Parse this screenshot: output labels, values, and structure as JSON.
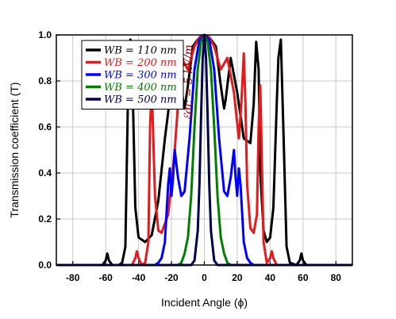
{
  "chart_data": {
    "type": "line",
    "title": "",
    "xlabel": "Incident Angle (ϕ)",
    "ylabel": "Transmission coefficient (T)",
    "xlim": [
      -90,
      90
    ],
    "ylim": [
      0,
      1.0
    ],
    "xticks": [
      "-80",
      "-60",
      "-40",
      "-20",
      "0",
      "20",
      "40",
      "60",
      "80"
    ],
    "yticks": [
      "0.0",
      "0.2",
      "0.4",
      "0.6",
      "0.8",
      "1.0"
    ],
    "grid": true,
    "legend_position": "top-left",
    "annotation": "ℰdc = 5 kV/m",
    "series": [
      {
        "name": "WB = 110 nm",
        "color": "#000000",
        "x": [
          -90,
          -62,
          -60,
          -59,
          -58,
          -56,
          -52,
          -50,
          -48,
          -46.5,
          -45,
          -44,
          -42,
          -40,
          -36,
          -32,
          -28,
          -24,
          -20,
          -16,
          -13,
          -12,
          -10,
          -7,
          -4,
          0,
          4,
          7,
          10,
          12,
          13,
          16,
          20,
          24,
          28,
          30,
          31.5,
          33,
          34,
          36,
          38,
          40,
          42,
          44,
          45,
          46.5,
          48,
          50,
          52,
          56,
          58,
          59,
          60,
          62,
          90
        ],
        "y": [
          0.0,
          0.0,
          0.02,
          0.05,
          0.02,
          0.0,
          0.0,
          0.01,
          0.08,
          0.7,
          0.98,
          0.9,
          0.25,
          0.12,
          0.1,
          0.13,
          0.28,
          0.55,
          0.78,
          0.9,
          0.72,
          0.68,
          0.78,
          0.95,
          0.98,
          1.0,
          0.98,
          0.95,
          0.78,
          0.68,
          0.72,
          0.9,
          0.75,
          0.55,
          0.53,
          0.7,
          0.97,
          0.85,
          0.4,
          0.15,
          0.1,
          0.12,
          0.25,
          0.7,
          0.9,
          0.98,
          0.6,
          0.08,
          0.01,
          0.0,
          0.02,
          0.05,
          0.02,
          0.0,
          0.0
        ]
      },
      {
        "name": "WB = 200 nm",
        "color": "#e41a1c",
        "x": [
          -90,
          -44,
          -42,
          -41,
          -40,
          -38,
          -36,
          -34,
          -33,
          -32,
          -30,
          -28,
          -26,
          -22,
          -18,
          -14,
          -10,
          -6,
          -3,
          0,
          3,
          6,
          10,
          14,
          18,
          21,
          22.5,
          24,
          25,
          26,
          28,
          30,
          32,
          33,
          34,
          36,
          38,
          40,
          41,
          42,
          44,
          90
        ],
        "y": [
          0.0,
          0.0,
          0.03,
          0.06,
          0.03,
          0.0,
          0.01,
          0.1,
          0.6,
          0.78,
          0.3,
          0.15,
          0.14,
          0.22,
          0.5,
          0.9,
          0.85,
          0.95,
          0.99,
          1.0,
          0.99,
          0.95,
          0.85,
          0.9,
          0.75,
          0.55,
          0.7,
          0.92,
          0.7,
          0.35,
          0.16,
          0.14,
          0.22,
          0.6,
          0.78,
          0.1,
          0.01,
          0.03,
          0.06,
          0.03,
          0.0,
          0.0
        ]
      },
      {
        "name": "WB = 300 nm",
        "color": "#0000ff",
        "x": [
          -90,
          -30,
          -28,
          -26,
          -24,
          -22,
          -21,
          -20,
          -19,
          -18,
          -16,
          -14,
          -12,
          -9,
          -6,
          -3,
          0,
          3,
          6,
          9,
          12,
          14,
          16,
          18,
          19,
          20,
          21,
          22,
          24,
          26,
          28,
          30,
          90
        ],
        "y": [
          0.0,
          0.0,
          0.01,
          0.03,
          0.1,
          0.35,
          0.42,
          0.3,
          0.38,
          0.5,
          0.38,
          0.3,
          0.32,
          0.55,
          0.85,
          0.98,
          1.0,
          0.98,
          0.85,
          0.55,
          0.32,
          0.3,
          0.38,
          0.5,
          0.38,
          0.3,
          0.42,
          0.35,
          0.1,
          0.03,
          0.01,
          0.0,
          0.0
        ]
      },
      {
        "name": "WB = 400 nm",
        "color": "#007f00",
        "x": [
          -90,
          -16,
          -14,
          -12,
          -10,
          -8,
          -6,
          -4,
          -2,
          0,
          2,
          4,
          6,
          8,
          10,
          12,
          14,
          16,
          90
        ],
        "y": [
          0.0,
          0.0,
          0.01,
          0.05,
          0.12,
          0.3,
          0.6,
          0.85,
          0.97,
          1.0,
          0.97,
          0.85,
          0.6,
          0.3,
          0.12,
          0.05,
          0.01,
          0.0,
          0.0
        ]
      },
      {
        "name": "WB = 500 nm",
        "color": "#00004d",
        "x": [
          -90,
          -8,
          -6,
          -4,
          -3,
          -2,
          -1,
          0,
          1,
          2,
          3,
          4,
          6,
          8,
          90
        ],
        "y": [
          0.0,
          0.0,
          0.02,
          0.15,
          0.35,
          0.65,
          0.9,
          1.0,
          0.9,
          0.65,
          0.35,
          0.15,
          0.02,
          0.0,
          0.0
        ]
      }
    ]
  }
}
